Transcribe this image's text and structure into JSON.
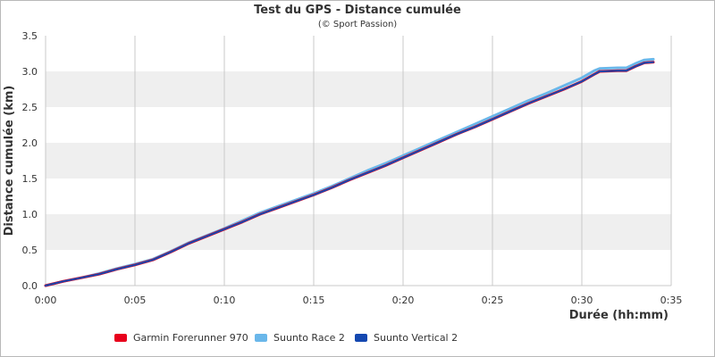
{
  "chart_data": {
    "type": "line",
    "title": "Test du GPS - Distance cumulée",
    "subtitle": "(© Sport Passion)",
    "xlabel": "Durée (hh:mm)",
    "ylabel": "Distance cumulée (km)",
    "x_unit": "minutes",
    "xlim": [
      0,
      35
    ],
    "ylim": [
      0,
      3.5
    ],
    "x_ticks": [
      {
        "value": 0,
        "label": "0:00"
      },
      {
        "value": 5,
        "label": "0:05"
      },
      {
        "value": 10,
        "label": "0:10"
      },
      {
        "value": 15,
        "label": "0:15"
      },
      {
        "value": 20,
        "label": "0:20"
      },
      {
        "value": 25,
        "label": "0:25"
      },
      {
        "value": 30,
        "label": "0:30"
      },
      {
        "value": 35,
        "label": "0:35"
      }
    ],
    "y_ticks": [
      {
        "value": 0,
        "label": "0.0"
      },
      {
        "value": 0.5,
        "label": "0.5"
      },
      {
        "value": 1.0,
        "label": "1.0"
      },
      {
        "value": 1.5,
        "label": "1.5"
      },
      {
        "value": 2.0,
        "label": "2.0"
      },
      {
        "value": 2.5,
        "label": "2.5"
      },
      {
        "value": 3.0,
        "label": "3.0"
      },
      {
        "value": 3.5,
        "label": "3.5"
      }
    ],
    "grid": true,
    "alternate_bands": true,
    "legend_position": "bottom",
    "series": [
      {
        "name": "Garmin Forerunner 970",
        "color": "#e8001c",
        "points": [
          [
            0,
            0
          ],
          [
            1,
            0.06
          ],
          [
            2,
            0.11
          ],
          [
            3,
            0.16
          ],
          [
            4,
            0.23
          ],
          [
            5,
            0.29
          ],
          [
            6,
            0.36
          ],
          [
            7,
            0.47
          ],
          [
            8,
            0.59
          ],
          [
            9,
            0.69
          ],
          [
            10,
            0.79
          ],
          [
            11,
            0.89
          ],
          [
            12,
            1.0
          ],
          [
            13,
            1.09
          ],
          [
            14,
            1.18
          ],
          [
            15,
            1.27
          ],
          [
            16,
            1.37
          ],
          [
            17,
            1.48
          ],
          [
            18,
            1.58
          ],
          [
            19,
            1.68
          ],
          [
            20,
            1.79
          ],
          [
            21,
            1.9
          ],
          [
            22,
            2.01
          ],
          [
            23,
            2.12
          ],
          [
            24,
            2.22
          ],
          [
            25,
            2.33
          ],
          [
            26,
            2.44
          ],
          [
            27,
            2.55
          ],
          [
            28,
            2.65
          ],
          [
            29,
            2.75
          ],
          [
            30,
            2.86
          ],
          [
            30.7,
            2.96
          ],
          [
            31,
            3.0
          ],
          [
            32,
            3.01
          ],
          [
            32.5,
            3.01
          ],
          [
            33,
            3.07
          ],
          [
            33.5,
            3.12
          ],
          [
            34,
            3.13
          ]
        ]
      },
      {
        "name": "Suunto Race 2",
        "color": "#6ab7ea",
        "points": [
          [
            0,
            0
          ],
          [
            1,
            0.06
          ],
          [
            2,
            0.11
          ],
          [
            3,
            0.17
          ],
          [
            4,
            0.24
          ],
          [
            5,
            0.3
          ],
          [
            6,
            0.37
          ],
          [
            7,
            0.48
          ],
          [
            8,
            0.6
          ],
          [
            9,
            0.7
          ],
          [
            10,
            0.8
          ],
          [
            11,
            0.91
          ],
          [
            12,
            1.02
          ],
          [
            13,
            1.11
          ],
          [
            14,
            1.2
          ],
          [
            15,
            1.29
          ],
          [
            16,
            1.39
          ],
          [
            17,
            1.5
          ],
          [
            18,
            1.61
          ],
          [
            19,
            1.71
          ],
          [
            20,
            1.82
          ],
          [
            21,
            1.93
          ],
          [
            22,
            2.04
          ],
          [
            23,
            2.15
          ],
          [
            24,
            2.26
          ],
          [
            25,
            2.37
          ],
          [
            26,
            2.48
          ],
          [
            27,
            2.59
          ],
          [
            28,
            2.69
          ],
          [
            29,
            2.8
          ],
          [
            30,
            2.91
          ],
          [
            30.7,
            3.01
          ],
          [
            31,
            3.04
          ],
          [
            32,
            3.05
          ],
          [
            32.5,
            3.05
          ],
          [
            33,
            3.11
          ],
          [
            33.5,
            3.16
          ],
          [
            34,
            3.17
          ]
        ]
      },
      {
        "name": "Suunto Vertical 2",
        "color": "#1448b0",
        "points": [
          [
            0,
            0
          ],
          [
            1,
            0.06
          ],
          [
            2,
            0.11
          ],
          [
            3,
            0.16
          ],
          [
            4,
            0.23
          ],
          [
            5,
            0.29
          ],
          [
            6,
            0.36
          ],
          [
            7,
            0.47
          ],
          [
            8,
            0.59
          ],
          [
            9,
            0.69
          ],
          [
            10,
            0.79
          ],
          [
            11,
            0.89
          ],
          [
            12,
            1.0
          ],
          [
            13,
            1.09
          ],
          [
            14,
            1.18
          ],
          [
            15,
            1.27
          ],
          [
            16,
            1.37
          ],
          [
            17,
            1.48
          ],
          [
            18,
            1.58
          ],
          [
            19,
            1.68
          ],
          [
            20,
            1.79
          ],
          [
            21,
            1.9
          ],
          [
            22,
            2.01
          ],
          [
            23,
            2.12
          ],
          [
            24,
            2.22
          ],
          [
            25,
            2.33
          ],
          [
            26,
            2.44
          ],
          [
            27,
            2.55
          ],
          [
            28,
            2.65
          ],
          [
            29,
            2.75
          ],
          [
            30,
            2.86
          ],
          [
            30.7,
            2.96
          ],
          [
            31,
            3.0
          ],
          [
            32,
            3.01
          ],
          [
            32.5,
            3.01
          ],
          [
            33,
            3.07
          ],
          [
            33.5,
            3.12
          ],
          [
            34,
            3.13
          ]
        ]
      }
    ]
  }
}
